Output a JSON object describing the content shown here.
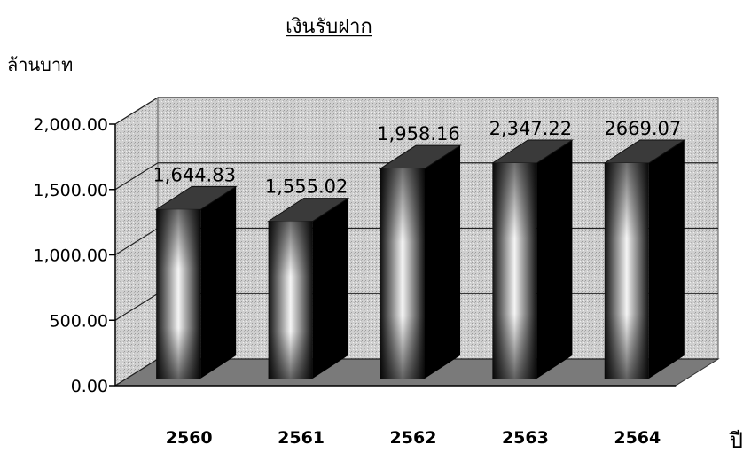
{
  "chart_data": {
    "type": "bar",
    "title": "เงินรับฝาก",
    "ylabel": "ล้านบาท",
    "xlabel": "ปี",
    "categories": [
      "2560",
      "2561",
      "2562",
      "2563",
      "2564"
    ],
    "values": [
      1644.83,
      1555.02,
      1958.16,
      2347.22,
      2669.07
    ],
    "data_labels": [
      "1,644.83",
      "1,555.02",
      "1,958.16",
      "2,347.22",
      "2669.07"
    ],
    "yticks": [
      "0.00",
      "500.00",
      "1,000.00",
      "1,500.00",
      "2,000.00"
    ],
    "ylim": [
      0,
      2000
    ],
    "grid": true,
    "legend": "none",
    "colors": {
      "wall": "#cfcfcf",
      "bar_dark": "#0a0a0a",
      "bar_light": "#f5f5f5",
      "side": "#000000",
      "top": "#3a3a3a"
    }
  }
}
